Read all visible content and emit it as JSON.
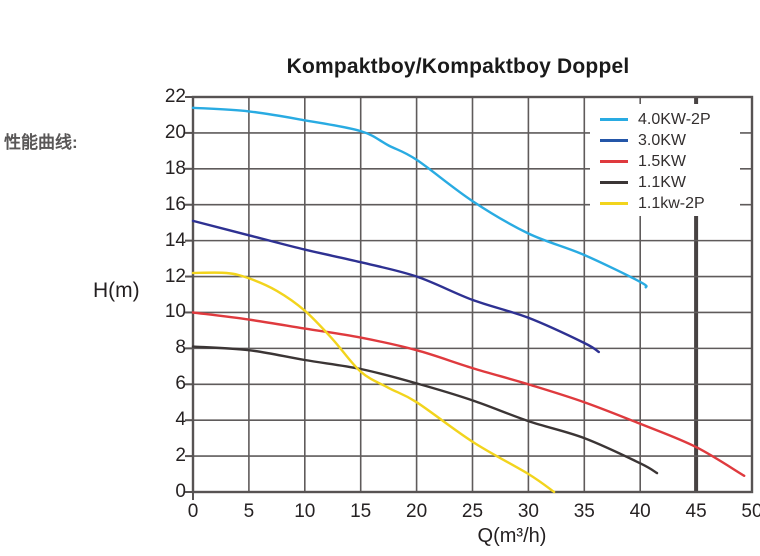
{
  "side_label": "性能曲线:",
  "chart_data": {
    "type": "line",
    "title": "Kompaktboy/Kompaktboy Doppel",
    "xlabel": "Q(m³/h)",
    "ylabel": "H(m)",
    "xlim": [
      0,
      50
    ],
    "ylim": [
      0,
      22
    ],
    "x_ticks": [
      0,
      5,
      10,
      15,
      20,
      25,
      30,
      35,
      40,
      45,
      50
    ],
    "y_ticks": [
      0,
      2,
      4,
      6,
      8,
      10,
      12,
      14,
      16,
      18,
      20,
      22
    ],
    "grid": true,
    "emphasized_vertical_gridline_x": 45,
    "legend_position": "top-right",
    "series": [
      {
        "name": "4.0KW-2P",
        "color": "#29abe2",
        "points": [
          [
            0,
            21.4
          ],
          [
            5,
            21.2
          ],
          [
            10,
            20.7
          ],
          [
            15,
            20.1
          ],
          [
            17.5,
            19.3
          ],
          [
            20,
            18.5
          ],
          [
            25,
            16.2
          ],
          [
            30,
            14.4
          ],
          [
            35,
            13.2
          ],
          [
            40,
            11.7
          ],
          [
            40.5,
            11.4
          ]
        ]
      },
      {
        "name": "3.0KW",
        "color": "#2e3192",
        "legend_color": "#2456a8",
        "points": [
          [
            0,
            15.1
          ],
          [
            5,
            14.3
          ],
          [
            10,
            13.5
          ],
          [
            15,
            12.8
          ],
          [
            20,
            12.0
          ],
          [
            25,
            10.7
          ],
          [
            30,
            9.7
          ],
          [
            35,
            8.3
          ],
          [
            36.3,
            7.8
          ]
        ]
      },
      {
        "name": "1.5KW",
        "color": "#df3a3e",
        "points": [
          [
            0,
            10.0
          ],
          [
            5,
            9.6
          ],
          [
            10,
            9.1
          ],
          [
            15,
            8.6
          ],
          [
            20,
            7.9
          ],
          [
            25,
            6.9
          ],
          [
            30,
            6.0
          ],
          [
            35,
            5.0
          ],
          [
            40,
            3.8
          ],
          [
            45,
            2.5
          ],
          [
            49.3,
            0.9
          ]
        ]
      },
      {
        "name": "1.1KW",
        "color": "#3b3535",
        "points": [
          [
            0,
            8.1
          ],
          [
            5,
            7.9
          ],
          [
            10,
            7.35
          ],
          [
            15,
            6.85
          ],
          [
            20,
            6.05
          ],
          [
            25,
            5.1
          ],
          [
            30,
            3.95
          ],
          [
            35,
            3.0
          ],
          [
            40,
            1.6
          ],
          [
            41.5,
            1.05
          ]
        ]
      },
      {
        "name": "1.1kw-2P",
        "color": "#f2d41d",
        "points": [
          [
            0,
            12.2
          ],
          [
            3,
            12.2
          ],
          [
            5,
            11.9
          ],
          [
            7.5,
            11.2
          ],
          [
            10,
            10.1
          ],
          [
            12.5,
            8.5
          ],
          [
            15,
            6.7
          ],
          [
            17.5,
            5.8
          ],
          [
            20,
            5.0
          ],
          [
            25,
            2.8
          ],
          [
            30,
            1.0
          ],
          [
            32.3,
            0
          ]
        ]
      }
    ],
    "colors": {
      "grid": "#5f5b5b",
      "border": "#575353",
      "emphasized_grid": "#474242",
      "tick_text": "#262223",
      "background": "#ffffff"
    }
  }
}
